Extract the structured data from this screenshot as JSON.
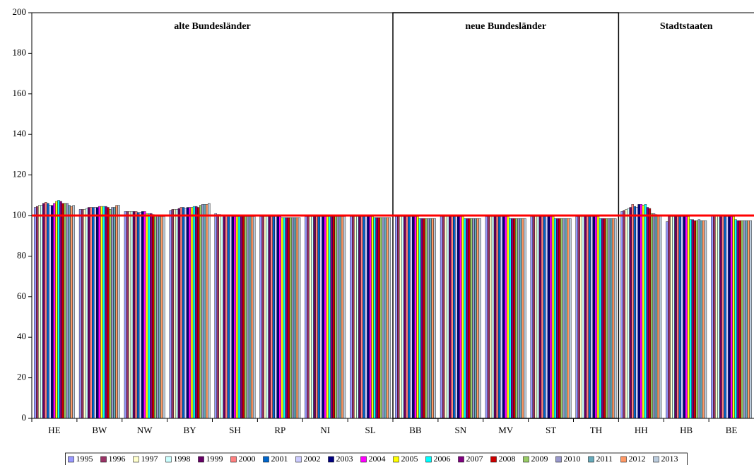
{
  "chart_data": {
    "type": "bar",
    "categories": [
      "HE",
      "BW",
      "NW",
      "BY",
      "SH",
      "RP",
      "NI",
      "SL",
      "BB",
      "SN",
      "MV",
      "ST",
      "TH",
      "HH",
      "HB",
      "BE"
    ],
    "annotations": [
      "alte Bundesländer",
      "neue Bundesländer",
      "Stadtstaaten"
    ],
    "reference_line": 100,
    "reference_color": "#ff0000",
    "ylim": [
      0,
      200
    ],
    "yticks": [
      0,
      20,
      40,
      60,
      80,
      100,
      120,
      140,
      160,
      180,
      200
    ],
    "grid": false,
    "legend": "bottom",
    "series": [
      {
        "name": "1995",
        "color": "#9999ff",
        "values": [
          104,
          103,
          102,
          102.5,
          101,
          99.5,
          99.5,
          99.5,
          99.5,
          99.5,
          99.5,
          99.5,
          99.5,
          102,
          97,
          100
        ]
      },
      {
        "name": "1996",
        "color": "#993366",
        "values": [
          104.5,
          103,
          102,
          103,
          100.5,
          99.5,
          99.5,
          99.5,
          99.5,
          99.5,
          99.5,
          99.5,
          99.5,
          102.5,
          99.5,
          100
        ]
      },
      {
        "name": "1997",
        "color": "#ffffcc",
        "values": [
          105,
          103,
          102,
          103,
          100.5,
          99.5,
          99.5,
          99.5,
          99.5,
          99.5,
          99.5,
          99.5,
          99.5,
          103,
          99.5,
          100
        ]
      },
      {
        "name": "1998",
        "color": "#ccffff",
        "values": [
          105,
          103.5,
          102,
          103,
          100,
          99.5,
          99.5,
          99.5,
          99.5,
          99.5,
          99.5,
          99.5,
          99.5,
          103.5,
          99.5,
          100
        ]
      },
      {
        "name": "1999",
        "color": "#660066",
        "values": [
          106,
          104,
          102,
          103.5,
          100,
          99.5,
          99.5,
          99.5,
          99.5,
          99.5,
          99.5,
          99.5,
          99.5,
          104,
          99.5,
          100
        ]
      },
      {
        "name": "2000",
        "color": "#ff8080",
        "values": [
          106.5,
          104,
          102,
          104,
          100,
          99.5,
          99.5,
          99.5,
          99.5,
          99.5,
          99.5,
          99.5,
          99.5,
          105.5,
          99.5,
          100
        ]
      },
      {
        "name": "2001",
        "color": "#0066cc",
        "values": [
          106,
          104,
          101.5,
          104,
          100,
          99.5,
          99.5,
          99.5,
          99.5,
          99.5,
          99.5,
          99.5,
          99.5,
          104.5,
          99.5,
          99.5
        ]
      },
      {
        "name": "2002",
        "color": "#ccccff",
        "values": [
          105,
          104,
          101.5,
          103.5,
          100,
          99.5,
          99.5,
          99.5,
          99.5,
          99.5,
          99.5,
          99.5,
          99.5,
          104,
          99.5,
          99.5
        ]
      },
      {
        "name": "2003",
        "color": "#000080",
        "values": [
          105,
          104,
          102,
          104,
          100,
          99.5,
          99.5,
          99.5,
          99.5,
          99.5,
          99.5,
          99.5,
          99.5,
          105.5,
          99.5,
          99.5
        ]
      },
      {
        "name": "2004",
        "color": "#ff00ff",
        "values": [
          106,
          104.5,
          102,
          104,
          99.5,
          99.5,
          99.5,
          99.5,
          99.5,
          99.5,
          99.5,
          99.5,
          99.5,
          105.5,
          99.5,
          99.5
        ]
      },
      {
        "name": "2005",
        "color": "#ffff00",
        "values": [
          107,
          104.5,
          101,
          104,
          99.5,
          99,
          99.5,
          99.5,
          99.5,
          99.5,
          99.5,
          99.5,
          99.5,
          105,
          99.5,
          99.5
        ]
      },
      {
        "name": "2006",
        "color": "#00ffff",
        "values": [
          107.5,
          104.5,
          101,
          104.5,
          99.5,
          99,
          99.5,
          99,
          98.5,
          98.5,
          98.5,
          98.5,
          98.5,
          105.5,
          98,
          98
        ]
      },
      {
        "name": "2007",
        "color": "#800080",
        "values": [
          107,
          104.5,
          101,
          104.5,
          99.5,
          99,
          99.5,
          99,
          98.5,
          98.5,
          98.5,
          98.5,
          98.5,
          104,
          98,
          97.5
        ]
      },
      {
        "name": "2008",
        "color": "#cc0000",
        "values": [
          106,
          104,
          100.5,
          104,
          99.5,
          99,
          99.5,
          99,
          98.5,
          98.5,
          98.5,
          98.5,
          98.5,
          103.5,
          97.5,
          97.5
        ]
      },
      {
        "name": "2009",
        "color": "#99cc66",
        "values": [
          106,
          103,
          100,
          105,
          99.5,
          99,
          99.5,
          99,
          98.5,
          98.5,
          98.5,
          98.5,
          98.5,
          101,
          97.5,
          97.5
        ]
      },
      {
        "name": "2010",
        "color": "#9999cc",
        "values": [
          106,
          104,
          100,
          105.5,
          99.5,
          99,
          99.5,
          99,
          98.5,
          98.5,
          98.5,
          98.5,
          98.5,
          101,
          98,
          97.5
        ]
      },
      {
        "name": "2011",
        "color": "#66aabb",
        "values": [
          105,
          104,
          99.5,
          105.5,
          99.5,
          99,
          99.5,
          99,
          98.5,
          98.5,
          98.5,
          98.5,
          98.5,
          100.5,
          97.5,
          97.5
        ]
      },
      {
        "name": "2012",
        "color": "#ff9966",
        "values": [
          104.5,
          105,
          99.5,
          105.5,
          99.5,
          99,
          99.5,
          99,
          98.5,
          98.5,
          98.5,
          98.5,
          98.5,
          100,
          97.5,
          97.5
        ]
      },
      {
        "name": "2013",
        "color": "#bbccdd",
        "values": [
          105,
          105,
          99.5,
          106,
          99.5,
          99,
          99.5,
          99,
          98.5,
          98.5,
          98.5,
          98.5,
          98.5,
          100,
          97.5,
          97.5
        ]
      }
    ]
  }
}
